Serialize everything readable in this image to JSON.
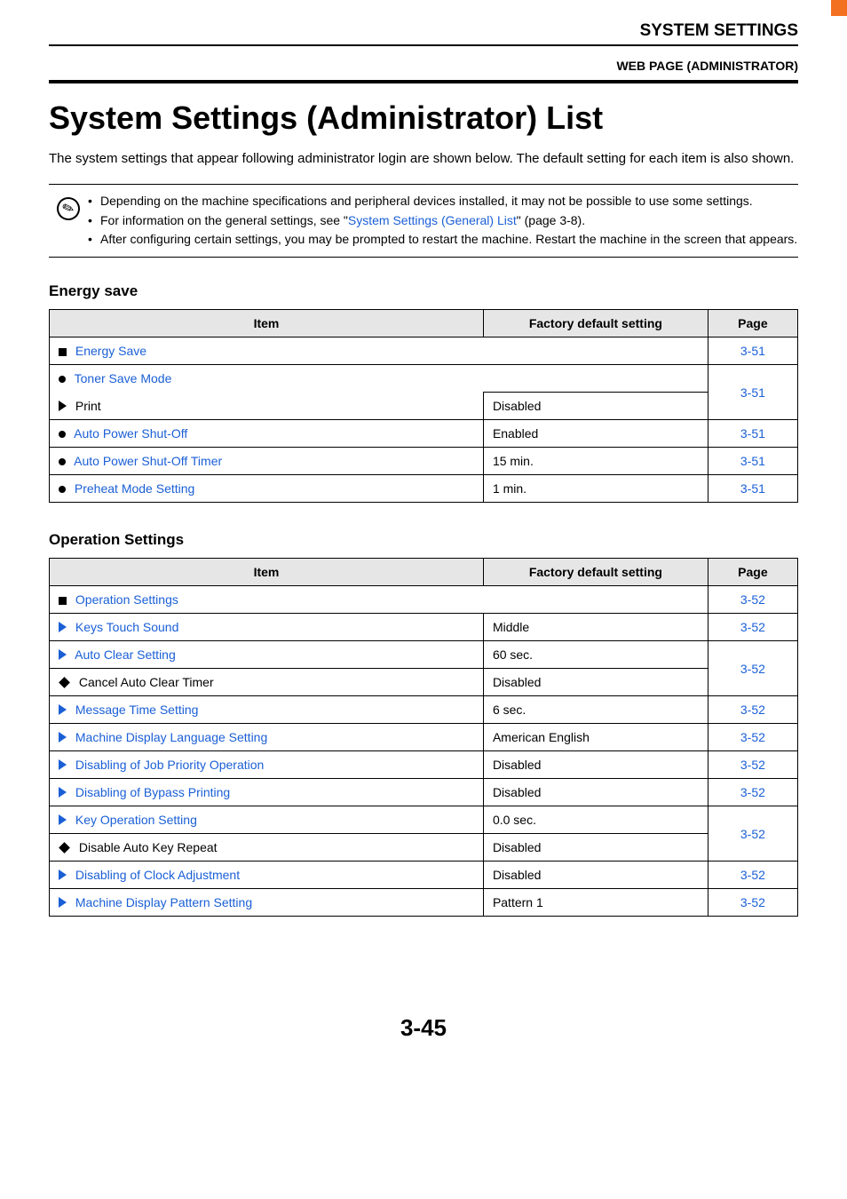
{
  "header": {
    "section": "SYSTEM SETTINGS",
    "sub": "WEB PAGE (ADMINISTRATOR)"
  },
  "title": "System Settings (Administrator) List",
  "intro": "The system settings that appear following administrator login are shown below. The default setting for each item is also shown.",
  "notes": {
    "bullet1": "Depending on the machine specifications and peripheral devices installed, it may not be possible to use some settings.",
    "bullet2_pre": "For information on the general settings, see \"",
    "bullet2_link": "System Settings (General) List",
    "bullet2_post": "\" (page 3-8).",
    "bullet3": "After configuring certain settings, you may be prompted to restart the machine. Restart the machine in the screen that appears."
  },
  "columns": {
    "item": "Item",
    "default": "Factory default setting",
    "page": "Page"
  },
  "energy": {
    "title": "Energy save",
    "header_label": "Energy Save",
    "header_page": "3-51",
    "toner_save": "Toner Save Mode",
    "toner_page": "3-51",
    "print_label": "Print",
    "print_default": "Disabled",
    "auto_off": "Auto Power Shut-Off",
    "auto_off_default": "Enabled",
    "auto_off_page": "3-51",
    "timer": "Auto Power Shut-Off Timer",
    "timer_default": "15 min.",
    "timer_page": "3-51",
    "preheat": "Preheat Mode Setting",
    "preheat_default": "1 min.",
    "preheat_page": "3-51"
  },
  "operation": {
    "title": "Operation Settings",
    "header_label": "Operation Settings",
    "header_page": "3-52",
    "keys_touch": "Keys Touch Sound",
    "keys_touch_default": "Middle",
    "keys_touch_page": "3-52",
    "auto_clear": "Auto Clear Setting",
    "auto_clear_default": "60 sec.",
    "auto_clear_page": "3-52",
    "cancel_timer": "Cancel Auto Clear Timer",
    "cancel_timer_default": "Disabled",
    "msg_time": "Message Time Setting",
    "msg_time_default": "6 sec.",
    "msg_time_page": "3-52",
    "lang": "Machine Display Language Setting",
    "lang_default": "American English",
    "lang_page": "3-52",
    "job_priority": "Disabling of Job Priority Operation",
    "job_priority_default": "Disabled",
    "job_priority_page": "3-52",
    "bypass": "Disabling of Bypass Printing",
    "bypass_default": "Disabled",
    "bypass_page": "3-52",
    "key_op": "Key Operation Setting",
    "key_op_default": "0.0 sec.",
    "key_op_page": "3-52",
    "auto_key": "Disable Auto Key Repeat",
    "auto_key_default": "Disabled",
    "clock": "Disabling of Clock Adjustment",
    "clock_default": "Disabled",
    "clock_page": "3-52",
    "pattern": "Machine Display Pattern Setting",
    "pattern_default": "Pattern 1",
    "pattern_page": "3-52"
  },
  "page_number": "3-45"
}
